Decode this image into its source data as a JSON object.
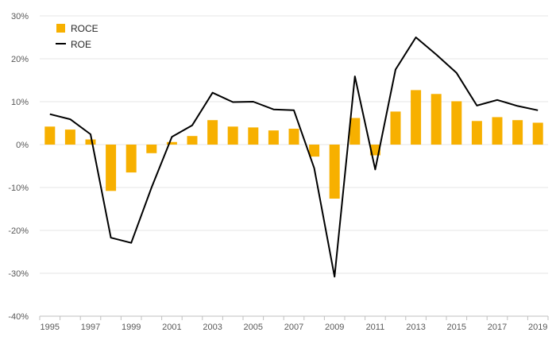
{
  "chart_data": {
    "type": "bar+line",
    "categories": [
      "1995",
      "1996",
      "1997",
      "1998",
      "1999",
      "2000",
      "2001",
      "2002",
      "2003",
      "2004",
      "2005",
      "2006",
      "2007",
      "2008",
      "2009",
      "2010",
      "2011",
      "2012",
      "2013",
      "2014",
      "2015",
      "2016",
      "2017",
      "2018",
      "2019"
    ],
    "x_tick_labels": [
      "1995",
      "1997",
      "1999",
      "2001",
      "2003",
      "2005",
      "2007",
      "2009",
      "2011",
      "2013",
      "2015",
      "2017",
      "2019"
    ],
    "series": [
      {
        "name": "ROCE",
        "type": "bar",
        "color": "#F7B000",
        "values": [
          4.2,
          3.5,
          1.2,
          -10.8,
          -6.5,
          -2.0,
          0.6,
          2.0,
          5.7,
          4.2,
          4.0,
          3.3,
          3.7,
          -2.8,
          -12.6,
          6.2,
          -2.5,
          7.7,
          12.7,
          11.8,
          10.1,
          5.5,
          6.4,
          5.7,
          5.1
        ]
      },
      {
        "name": "ROE",
        "type": "line",
        "color": "#000000",
        "values": [
          7.1,
          5.9,
          2.4,
          -21.7,
          -22.9,
          -10.0,
          1.8,
          4.5,
          12.1,
          9.9,
          10.0,
          8.2,
          8.0,
          -5.5,
          -30.8,
          15.9,
          -5.8,
          17.5,
          25.0,
          21.0,
          16.7,
          9.1,
          10.4,
          9.0,
          8.0
        ]
      }
    ],
    "yticks": [
      "30%",
      "20%",
      "10%",
      "0%",
      "-10%",
      "-20%",
      "-30%",
      "-40%"
    ],
    "ylim": [
      -40,
      30
    ],
    "xlabel": "",
    "ylabel": "",
    "title": "",
    "grid": true,
    "legend": "top-left"
  }
}
